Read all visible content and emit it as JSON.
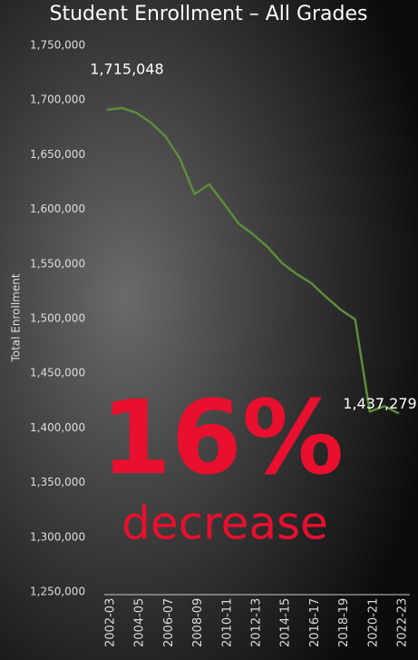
{
  "chart_data": {
    "type": "line",
    "title": "Student Enrollment – All Grades",
    "y_label": "Total Enrollment",
    "annotations": [
      "16%",
      "decrease"
    ],
    "categories": [
      "2002-03",
      null,
      "2004-05",
      null,
      "2006-07",
      null,
      "2008-09",
      null,
      "2010-11",
      null,
      "2012-13",
      null,
      "2014-15",
      null,
      "2016-17",
      null,
      "2018-19",
      null,
      "2020-21",
      null,
      "2022-23"
    ],
    "series": [
      {
        "name": "Total Enrollment",
        "color": "#5d8c3c",
        "values": [
          1715048,
          1716800,
          1712600,
          1703500,
          1691000,
          1670300,
          1637900,
          1647000,
          1629600,
          1611300,
          1601300,
          1589700,
          1574800,
          1564800,
          1556500,
          1544000,
          1532400,
          1523300,
          1439000,
          1444000,
          1437279
        ],
        "value_labels": [
          "1,715,048",
          null,
          null,
          null,
          null,
          null,
          null,
          null,
          null,
          null,
          null,
          null,
          null,
          null,
          null,
          null,
          null,
          null,
          null,
          null,
          "1,437,279"
        ]
      }
    ],
    "ylim": [
      1250000,
      1750000
    ],
    "yticks": [
      {
        "value": 1250000,
        "label": "1,250,000"
      },
      {
        "value": 1300000,
        "label": "1,300,000"
      },
      {
        "value": 1350000,
        "label": "1,350,000"
      },
      {
        "value": 1400000,
        "label": "1,400,000"
      },
      {
        "value": 1450000,
        "label": "1,450,000"
      },
      {
        "value": 1500000,
        "label": "1,500,000"
      },
      {
        "value": 1550000,
        "label": "1,550,000"
      },
      {
        "value": 1600000,
        "label": "1,600,000"
      },
      {
        "value": 1650000,
        "label": "1,650,000"
      },
      {
        "value": 1700000,
        "label": "1,700,000"
      },
      {
        "value": 1750000,
        "label": "1,750,000"
      }
    ],
    "grid": false
  }
}
